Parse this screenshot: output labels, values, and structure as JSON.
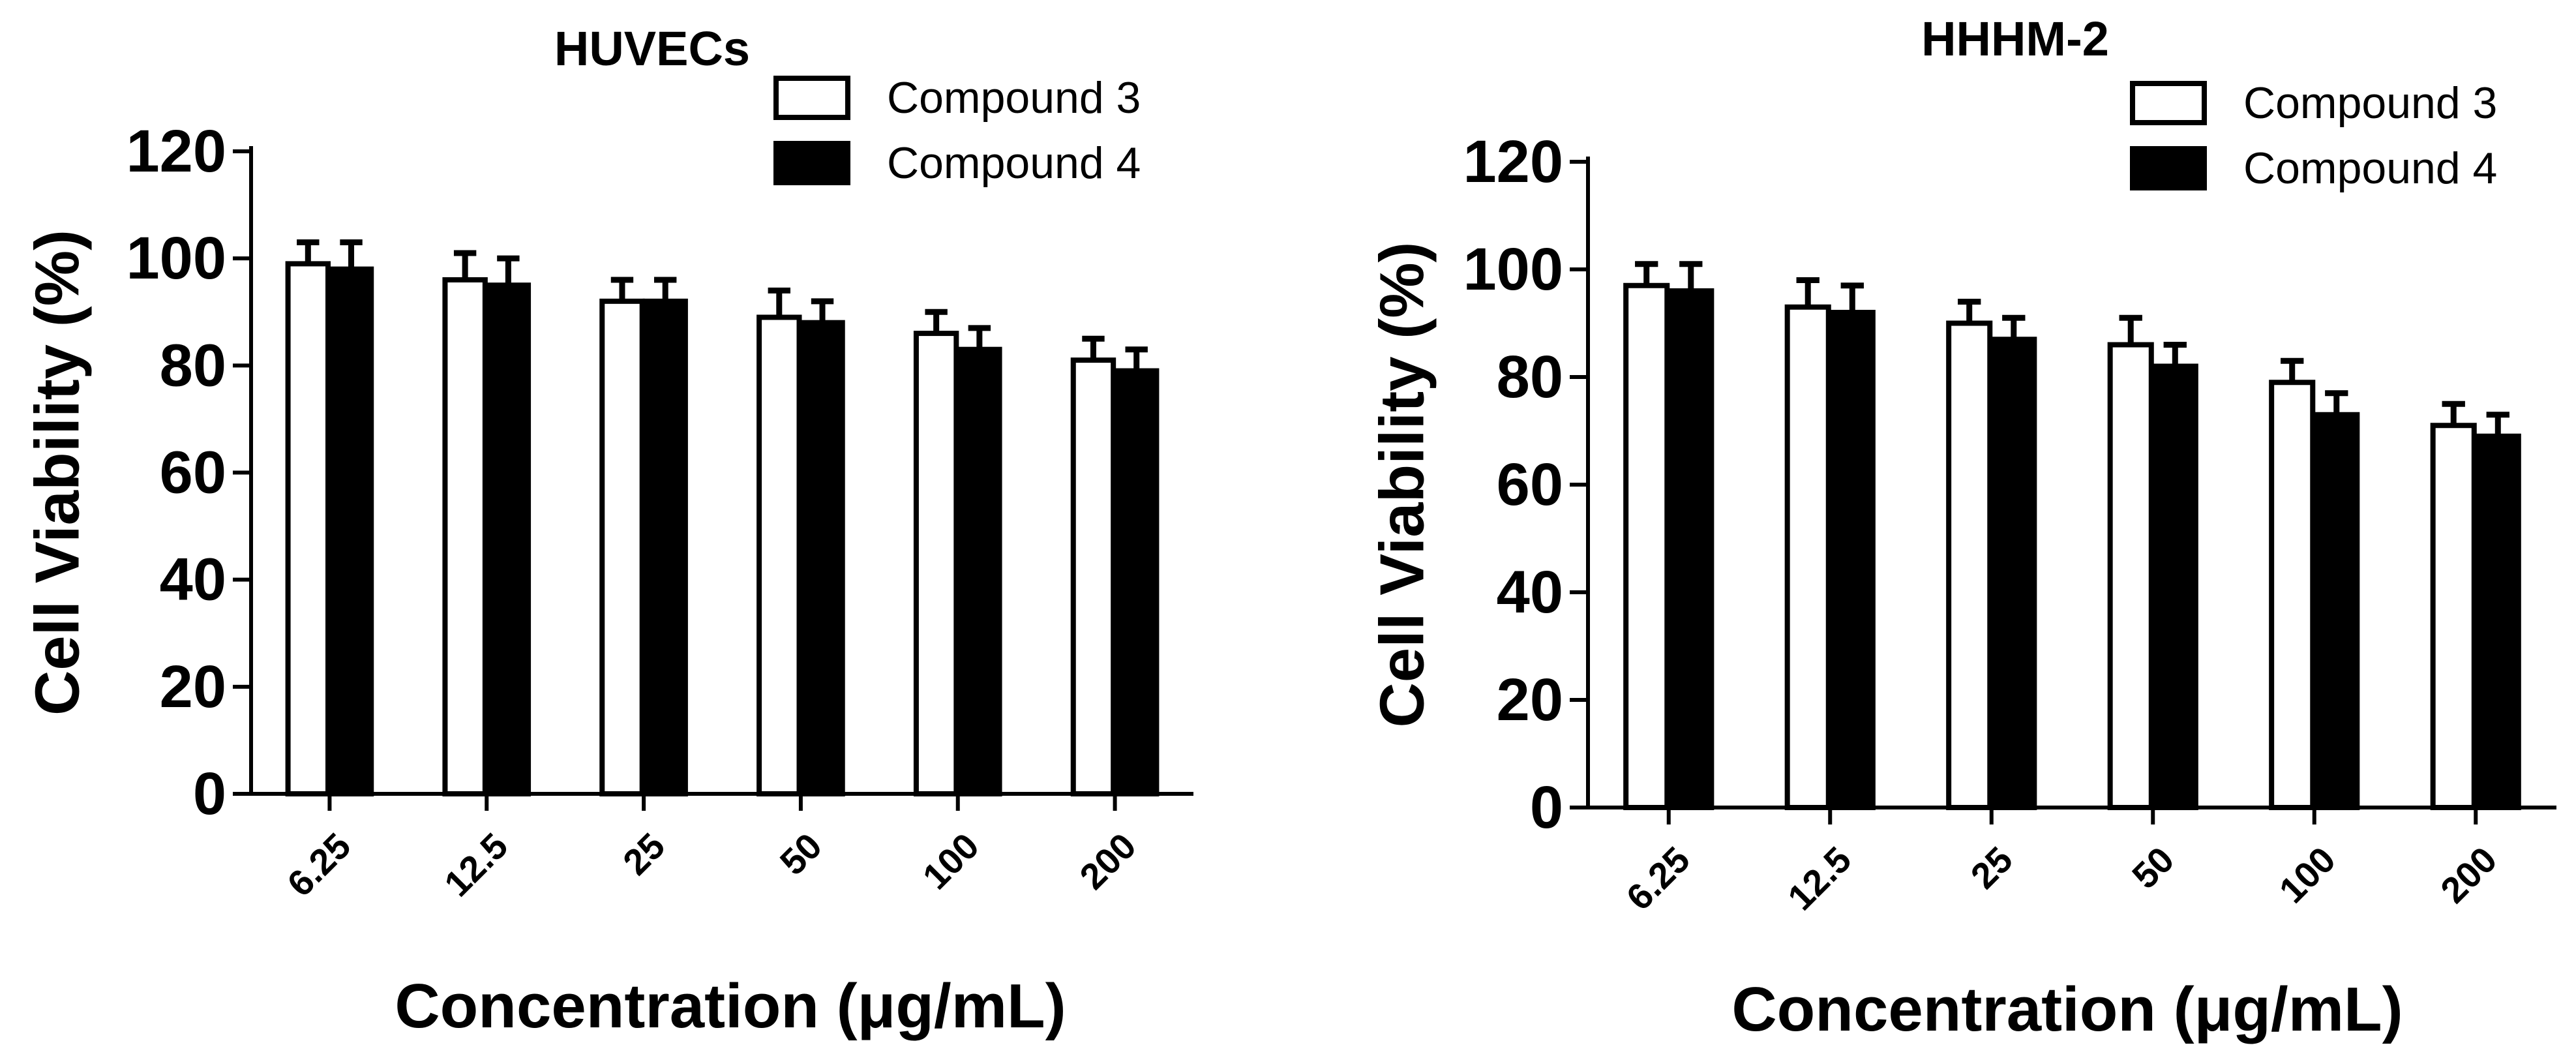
{
  "chart_data": [
    {
      "type": "bar",
      "title": "HUVECs",
      "xlabel": "Concentration (μg/mL)",
      "ylabel": "Cell Viability (%)",
      "ylim": [
        0,
        120
      ],
      "yticks": [
        "0",
        "20",
        "40",
        "60",
        "80",
        "100",
        "120"
      ],
      "categories": [
        "6.25",
        "12.5",
        "25",
        "50",
        "100",
        "200"
      ],
      "legend_position": "top-right",
      "grid": false,
      "series": [
        {
          "name": "Compound 3",
          "values": [
            99,
            96,
            92,
            89,
            86,
            81
          ],
          "errors": [
            4,
            5,
            4,
            5,
            4,
            4
          ],
          "fill": "#ffffff",
          "stroke": "#000000"
        },
        {
          "name": "Compound 4",
          "values": [
            98,
            95,
            92,
            88,
            83,
            79
          ],
          "errors": [
            5,
            5,
            4,
            4,
            4,
            4
          ],
          "fill": "#000000",
          "stroke": "#000000"
        }
      ]
    },
    {
      "type": "bar",
      "title": "HHHM-2",
      "xlabel": "Concentration (μg/mL)",
      "ylabel": "Cell Viability (%)",
      "ylim": [
        0,
        120
      ],
      "yticks": [
        "0",
        "20",
        "40",
        "60",
        "80",
        "100",
        "120"
      ],
      "categories": [
        "6.25",
        "12.5",
        "25",
        "50",
        "100",
        "200"
      ],
      "legend_position": "top-right",
      "grid": false,
      "series": [
        {
          "name": "Compound 3",
          "values": [
            97,
            93,
            90,
            86,
            79,
            71
          ],
          "errors": [
            4,
            5,
            4,
            5,
            4,
            4
          ],
          "fill": "#ffffff",
          "stroke": "#000000"
        },
        {
          "name": "Compound 4",
          "values": [
            96,
            92,
            87,
            82,
            73,
            69
          ],
          "errors": [
            5,
            5,
            4,
            4,
            4,
            4
          ],
          "fill": "#000000",
          "stroke": "#000000"
        }
      ]
    }
  ]
}
